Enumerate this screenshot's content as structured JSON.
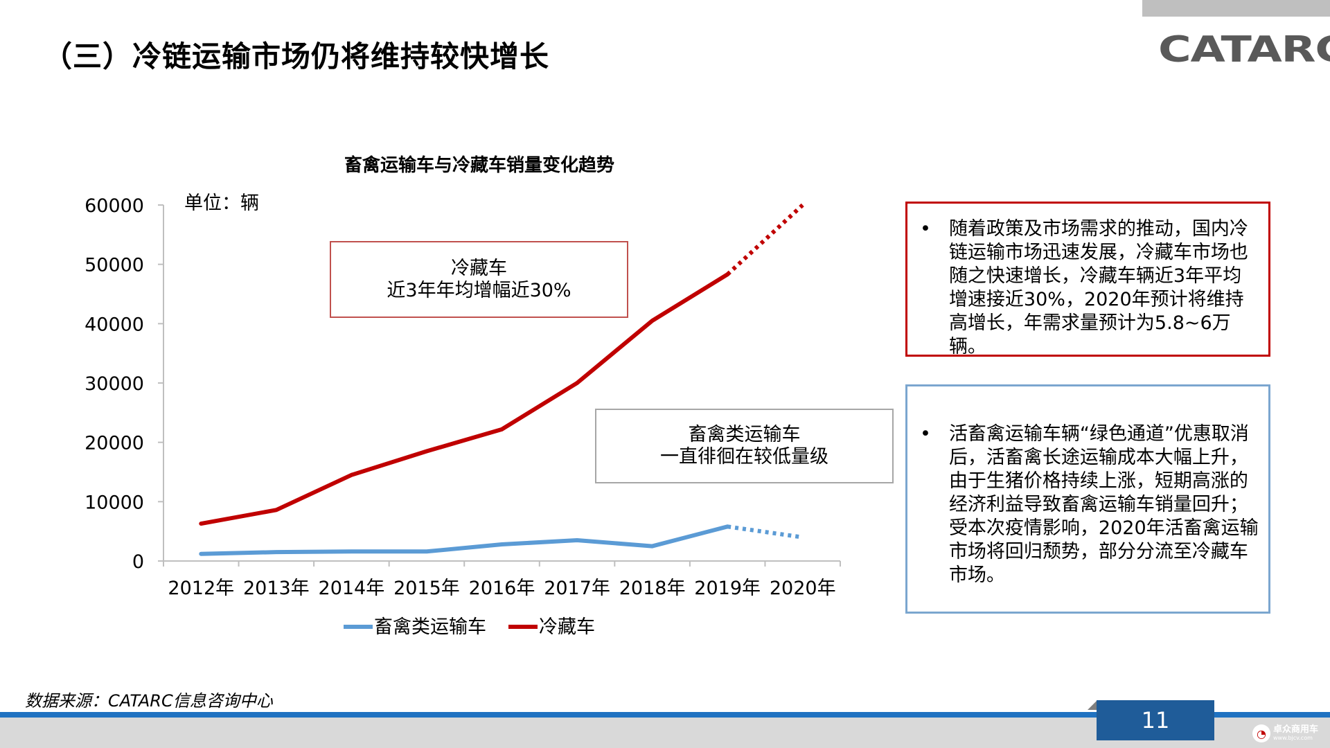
{
  "header": {
    "title": "（三）冷链运输市场仍将维持较快增长",
    "logo": "CATARC"
  },
  "chart_data": {
    "type": "line",
    "title": "畜禽运输车与冷藏车销量变化趋势",
    "unit_label": "单位：辆",
    "xlabel": "",
    "ylabel": "",
    "categories": [
      "2012年",
      "2013年",
      "2014年",
      "2015年",
      "2016年",
      "2017年",
      "2018年",
      "2019年",
      "2020年"
    ],
    "ylim": [
      0,
      60000
    ],
    "yticks": [
      "0",
      "10000",
      "20000",
      "30000",
      "40000",
      "50000",
      "60000"
    ],
    "grid": false,
    "legend_position": "bottom",
    "series": [
      {
        "name": "畜禽类运输车",
        "color": "#5b9bd5",
        "values": [
          1200,
          1500,
          1600,
          1600,
          2800,
          3500,
          2500,
          5800,
          4000
        ],
        "projected_from_index": 7
      },
      {
        "name": "冷藏车",
        "color": "#c00000",
        "values": [
          6300,
          8600,
          14500,
          18500,
          22200,
          30000,
          40500,
          48300,
          60000
        ],
        "projected_from_index": 7
      }
    ]
  },
  "callouts": {
    "cold": {
      "line1": "冷藏车",
      "line2": "近3年年均增幅近30%"
    },
    "livestock": {
      "line1": "畜禽类运输车",
      "line2": "一直徘徊在较低量级"
    }
  },
  "bullets": {
    "dot": "•",
    "red_text": "随着政策及市场需求的推动，国内冷链运输市场迅速发展，冷藏车市场也随之快速增长，冷藏车辆近3年平均增速接近30%，2020年预计将维持高增长，年需求量预计为5.8~6万辆。",
    "blue_text": "活畜禽运输车辆“绿色通道”优惠取消后，活畜禽长途运输成本大幅上升，由于生猪价格持续上涨，短期高涨的经济利益导致畜禽运输车销量回升；受本次疫情影响，2020年活畜禽运输市场将回归颓势，部分分流至冷藏车市场。"
  },
  "footer": {
    "source": "数据来源：CATARC信息咨询中心",
    "page_number": "11",
    "watermark_name": "卓众商用车",
    "watermark_url": "www.bjcv.com"
  }
}
